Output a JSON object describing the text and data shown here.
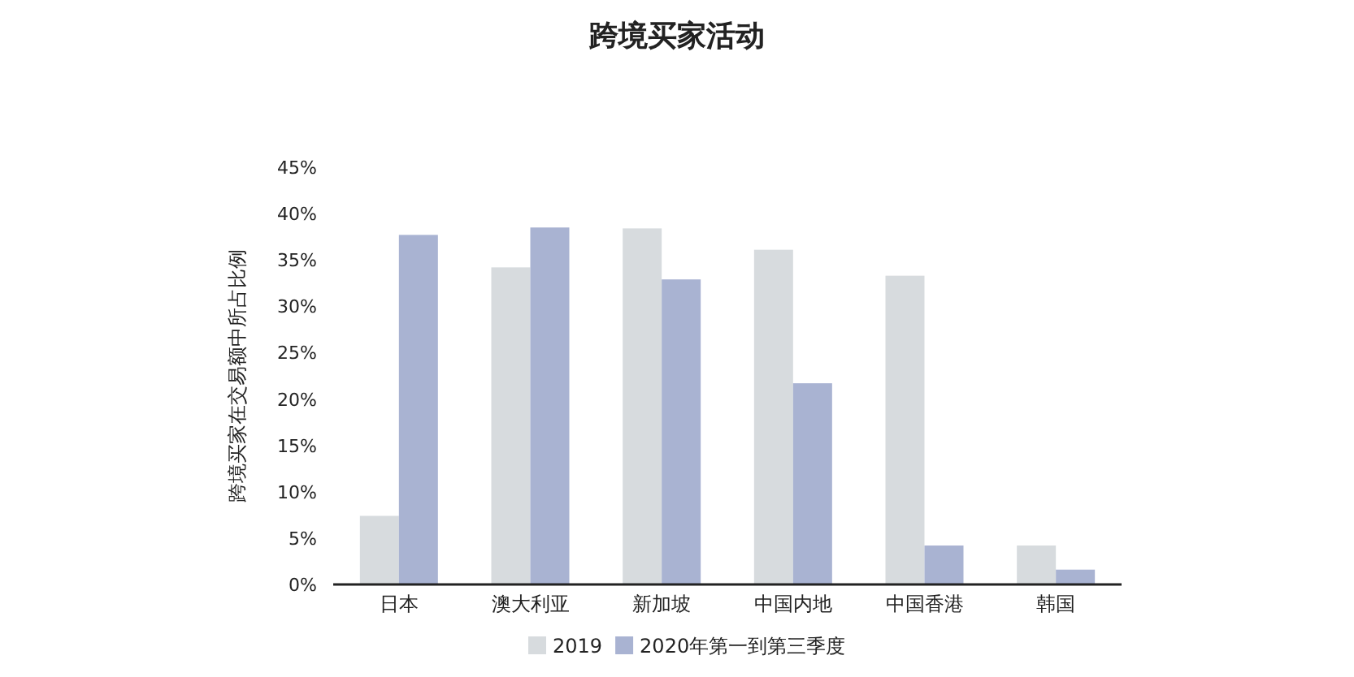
{
  "chart_data": {
    "type": "bar",
    "title": "跨境买家活动",
    "ylabel": "跨境买家在交易额中所占比例",
    "categories": [
      "日本",
      "澳大利亚",
      "新加坡",
      "中国内地",
      "中国香港",
      "韩国"
    ],
    "series": [
      {
        "name": "2019",
        "color": "#d7dbde",
        "values": [
          7.4,
          34.2,
          38.4,
          36.1,
          33.3,
          4.2
        ]
      },
      {
        "name": "2020年第一到第三季度",
        "color": "#a9b3d2",
        "values": [
          37.7,
          38.5,
          32.9,
          21.7,
          4.2,
          1.6
        ]
      }
    ],
    "ylim": [
      0,
      45
    ],
    "yticks": [
      {
        "value": 0,
        "label": "0%"
      },
      {
        "value": 5,
        "label": "5%"
      },
      {
        "value": 10,
        "label": "10%"
      },
      {
        "value": 15,
        "label": "15%"
      },
      {
        "value": 20,
        "label": "20%"
      },
      {
        "value": 25,
        "label": "25%"
      },
      {
        "value": 30,
        "label": "30%"
      },
      {
        "value": 35,
        "label": "35%"
      },
      {
        "value": 40,
        "label": "40%"
      },
      {
        "value": 45,
        "label": "45%"
      }
    ],
    "grid": false,
    "legend": "bottom"
  }
}
